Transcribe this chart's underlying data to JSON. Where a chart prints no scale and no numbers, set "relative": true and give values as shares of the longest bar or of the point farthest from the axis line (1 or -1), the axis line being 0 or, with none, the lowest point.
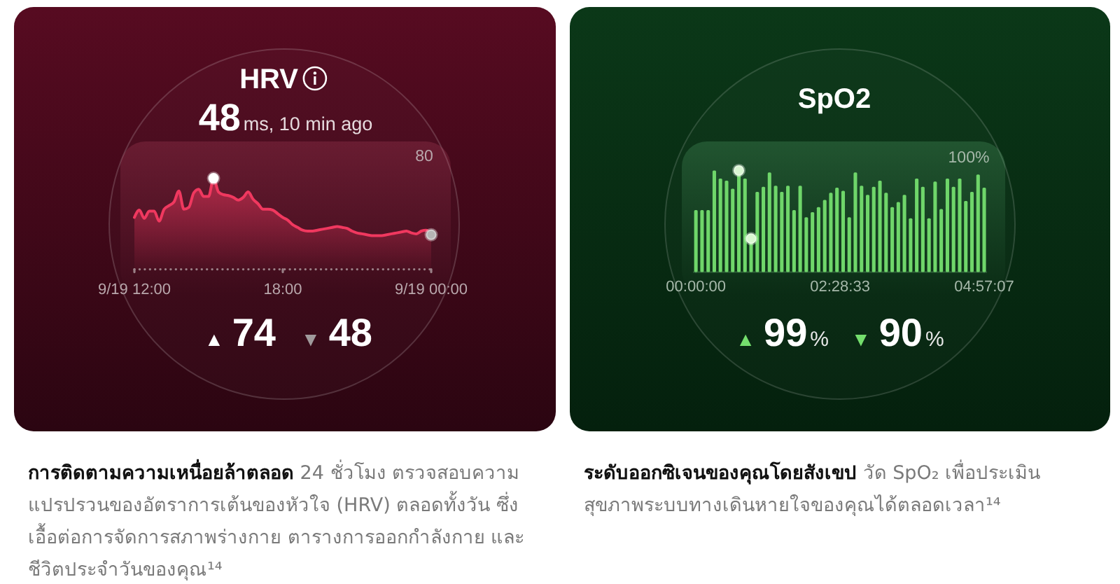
{
  "chart_data": [
    {
      "type": "area",
      "title": "HRV",
      "subtitle": "48ms, 10 min ago",
      "relative": true,
      "categories": [
        "9/19 12:00",
        null,
        null,
        null,
        null,
        null,
        null,
        null,
        null,
        null,
        null,
        null,
        null,
        null,
        null,
        null,
        null,
        null,
        null,
        null,
        null,
        null,
        null,
        null,
        null,
        null,
        null,
        null,
        null,
        null,
        "18:00",
        null,
        null,
        null,
        null,
        null,
        null,
        null,
        null,
        null,
        null,
        null,
        null,
        null,
        null,
        null,
        null,
        null,
        null,
        null,
        null,
        null,
        null,
        null,
        null,
        null,
        null,
        null,
        null,
        null,
        "9/19 00:00"
      ],
      "series": [
        {
          "color": "#f0385f",
          "values": [
            0.57,
            0.65,
            0.56,
            0.64,
            0.64,
            0.53,
            0.66,
            0.7,
            0.74,
            0.86,
            0.66,
            0.68,
            0.84,
            0.88,
            0.8,
            0.8,
            1.0,
            0.85,
            0.82,
            0.81,
            0.79,
            0.76,
            0.79,
            0.85,
            0.77,
            0.72,
            0.66,
            0.66,
            0.65,
            0.61,
            0.57,
            0.54,
            0.49,
            0.46,
            0.43,
            0.42,
            0.42,
            0.43,
            0.44,
            0.45,
            0.46,
            0.47,
            0.46,
            0.45,
            0.42,
            0.4,
            0.39,
            0.38,
            0.37,
            0.37,
            0.37,
            0.38,
            0.39,
            0.4,
            0.41,
            0.42,
            0.4,
            0.39,
            0.42,
            0.43,
            0.38
          ]
        },
        {
          "type": "scatter",
          "color": "#ffffff",
          "marker": "circle",
          "values": [
            null,
            null,
            null,
            null,
            null,
            null,
            null,
            null,
            null,
            null,
            null,
            null,
            null,
            null,
            null,
            null,
            1.0,
            null,
            null,
            null,
            null,
            null,
            null,
            null,
            null,
            null,
            null,
            null,
            null,
            null,
            null,
            null,
            null,
            null,
            null,
            null,
            null,
            null,
            null,
            null,
            null,
            null,
            null,
            null,
            null,
            null,
            null,
            null,
            null,
            null,
            null,
            null,
            null,
            null,
            null,
            null,
            null,
            null,
            null,
            null,
            null
          ]
        },
        {
          "type": "scatter",
          "color": "#b5b5b5",
          "marker": "circle",
          "values": [
            null,
            null,
            null,
            null,
            null,
            null,
            null,
            null,
            null,
            null,
            null,
            null,
            null,
            null,
            null,
            null,
            null,
            null,
            null,
            null,
            null,
            null,
            null,
            null,
            null,
            null,
            null,
            null,
            null,
            null,
            null,
            null,
            null,
            null,
            null,
            null,
            null,
            null,
            null,
            null,
            null,
            null,
            null,
            null,
            null,
            null,
            null,
            null,
            null,
            null,
            null,
            null,
            null,
            null,
            null,
            null,
            null,
            null,
            null,
            null,
            0.38
          ]
        }
      ],
      "annotations": [
        "80",
        "▲74",
        "▼48",
        "การติดตามความเหนื่อยล้าตลอด",
        "24 ชั่วโมง ตรวจสอบความ",
        "แปรปรวนของอัตราการเต้นของหัวใจ (HRV) ตลอดทั้งวัน ซึ่งเอื้อต่อการจัดการสภาพร่างกาย ตารางการออกกำลังกาย และชีวิตประจำวันของคุณ¹⁴"
      ]
    },
    {
      "type": "bar",
      "title": "SpO2",
      "relative": true,
      "x": [
        0,
        0.105,
        0.211,
        0.316,
        0.421,
        0.527,
        0.632,
        0.738,
        0.843,
        0.948,
        1.054,
        1.159,
        1.264,
        1.37,
        1.475,
        1.58,
        1.686,
        1.791,
        1.896,
        2.002,
        2.107,
        2.213,
        2.318,
        2.423,
        2.529,
        2.634,
        2.739,
        2.845,
        2.95,
        3.055,
        3.161,
        3.266,
        3.372,
        3.477,
        3.582,
        3.688,
        3.793,
        3.898,
        4.004,
        4.109,
        4.214,
        4.32,
        4.425,
        4.531,
        4.636,
        4.741,
        4.847,
        4.952
      ],
      "xlim": [
        -0.05,
        5.0
      ],
      "xticks": [
        {
          "value": 0,
          "label": "00:00:00"
        },
        {
          "value": 2.4758,
          "label": "02:28:33"
        },
        {
          "value": 4.9519,
          "label": "04:57:07"
        }
      ],
      "series": [
        {
          "color": "#6fd66a",
          "values": [
            0.61,
            0.61,
            0.61,
            1.0,
            0.92,
            0.9,
            0.82,
            1.0,
            0.92,
            0.33,
            0.79,
            0.84,
            0.98,
            0.85,
            0.79,
            0.85,
            0.61,
            0.85,
            0.54,
            0.59,
            0.64,
            0.71,
            0.78,
            0.83,
            0.8,
            0.54,
            0.98,
            0.85,
            0.76,
            0.84,
            0.9,
            0.78,
            0.64,
            0.69,
            0.76,
            0.53,
            0.92,
            0.84,
            0.53,
            0.89,
            0.62,
            0.92,
            0.84,
            0.92,
            0.7,
            0.79,
            0.96,
            0.83
          ]
        },
        {
          "type": "scatter",
          "color": "#d9f7d2",
          "marker": "circle",
          "x": [
            0.738,
            0.948
          ],
          "values": [
            1.0,
            0.33
          ]
        }
      ],
      "annotations": [
        "100%",
        "▲99%",
        "▼90%",
        "ระดับออกซิเจนของคุณโดยสังเขป",
        "วัด SpO₂ เพื่อประเมิน",
        "สุขภาพระบบทางเดินหายใจของคุณได้ตลอดเวลา¹⁴"
      ]
    }
  ]
}
